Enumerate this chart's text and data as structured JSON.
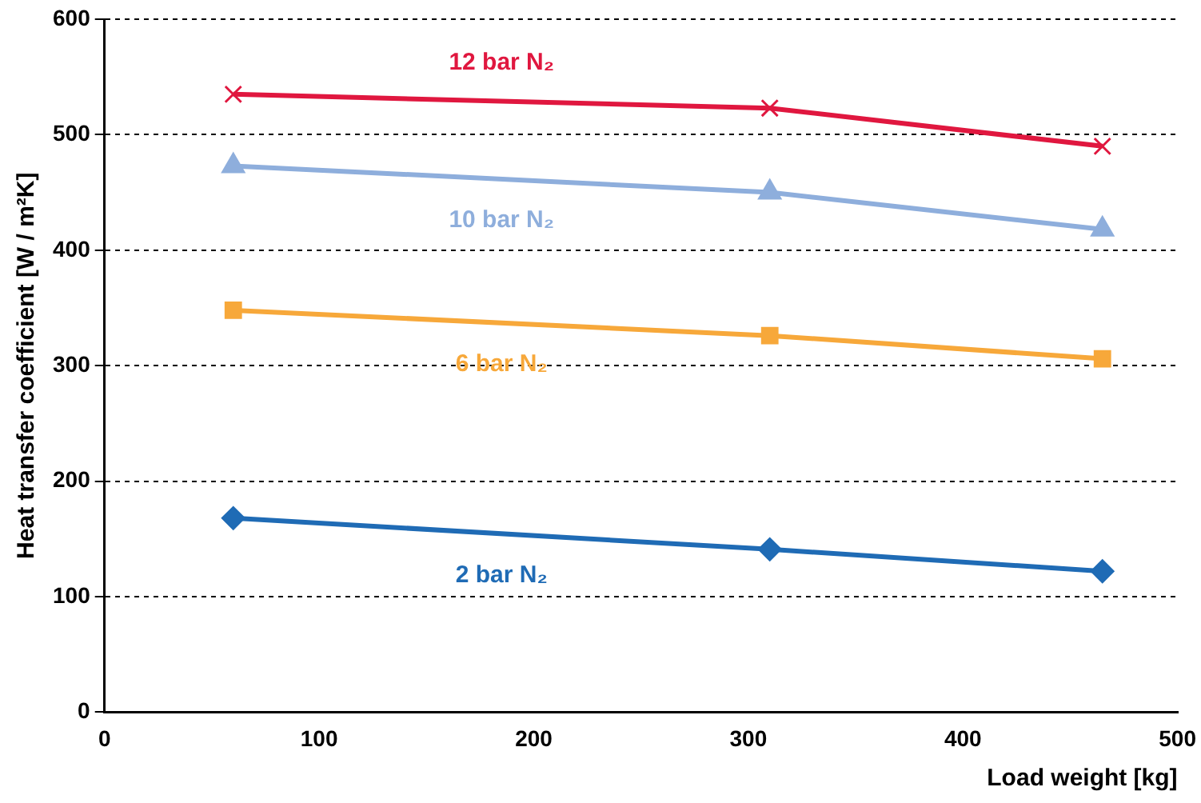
{
  "chart_data": {
    "type": "line",
    "xlabel": "Load weight [kg]",
    "ylabel": "Heat transfer coefficient [W / m²K]",
    "x": [
      60,
      310,
      465
    ],
    "xlim": [
      0,
      500
    ],
    "xticks": [
      0,
      100,
      200,
      300,
      400,
      500
    ],
    "ylim": [
      0,
      600
    ],
    "yticks": [
      0,
      100,
      200,
      300,
      400,
      500,
      600
    ],
    "grid": "y",
    "legend": false,
    "series": [
      {
        "name": "12 bar N₂",
        "color": "#e0173f",
        "marker": "cross",
        "values": [
          535,
          523,
          490
        ]
      },
      {
        "name": "10 bar N₂",
        "color": "#8eaedc",
        "marker": "triangle",
        "values": [
          473,
          450,
          418
        ]
      },
      {
        "name": "6 bar N₂",
        "color": "#f7a83a",
        "marker": "square",
        "values": [
          348,
          326,
          306
        ]
      },
      {
        "name": "2 bar N₂",
        "color": "#1f6bb5",
        "marker": "diamond",
        "values": [
          168,
          141,
          122
        ]
      }
    ]
  }
}
